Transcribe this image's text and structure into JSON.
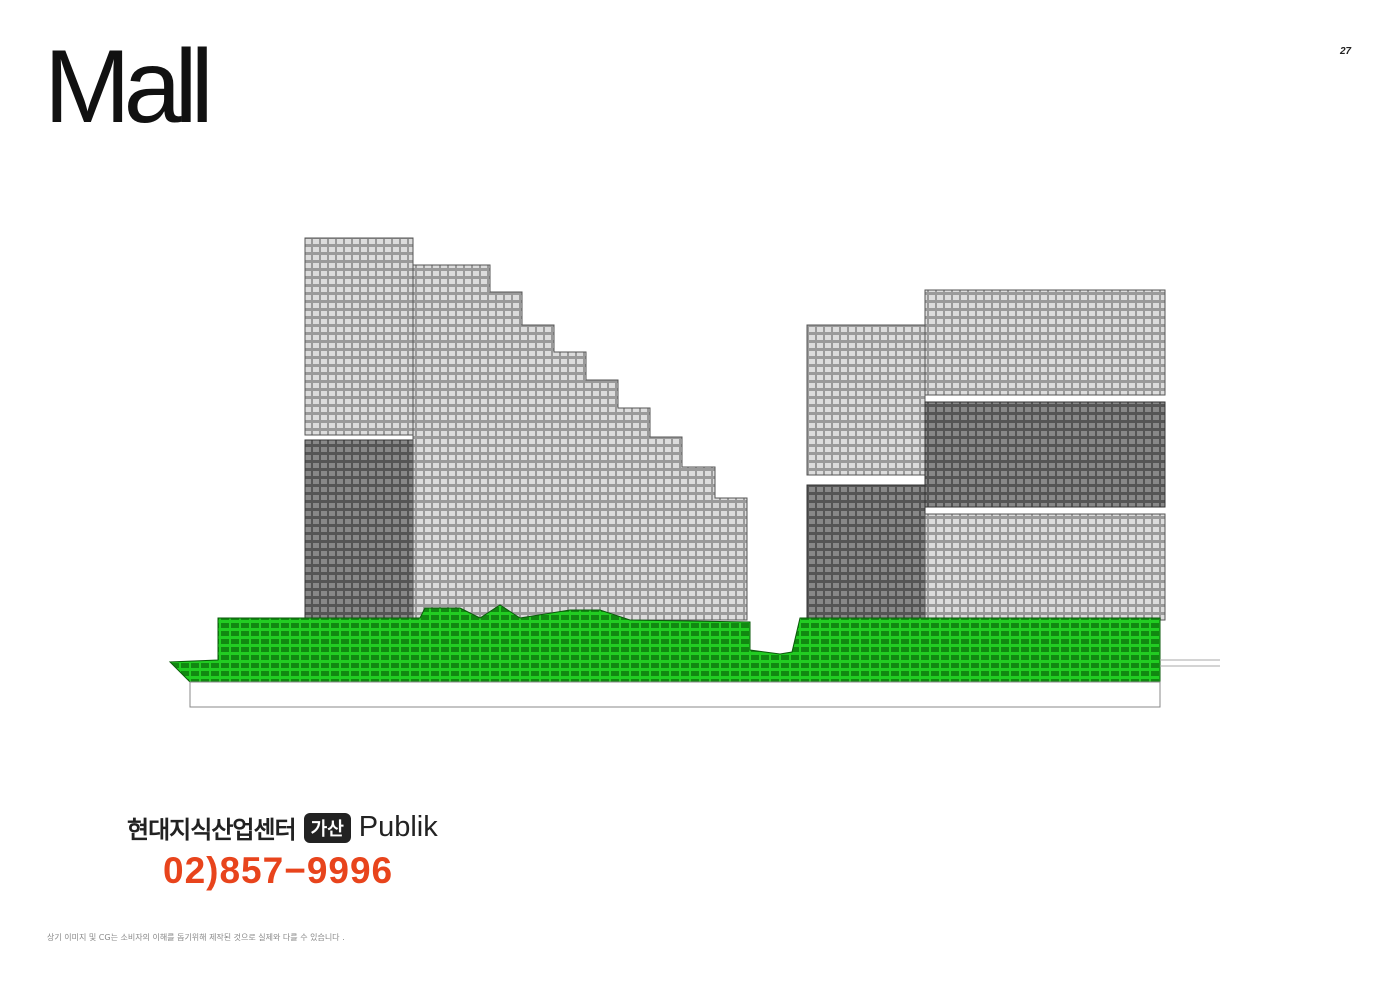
{
  "header": {
    "title": "Mall",
    "page_number": "27"
  },
  "brand": {
    "name_ko": "현대지식산업센터",
    "badge": "가산",
    "name_en": "Publik",
    "phone": "02)857−9996"
  },
  "footer": {
    "disclaimer": "상기 이미지 및 CG는 소비자의 이해를 돕기위해 제작된 것으로 실제와 다를 수 있습니다 ."
  },
  "colors": {
    "mall_highlight": "#22cc22",
    "phone": "#e8441c"
  }
}
